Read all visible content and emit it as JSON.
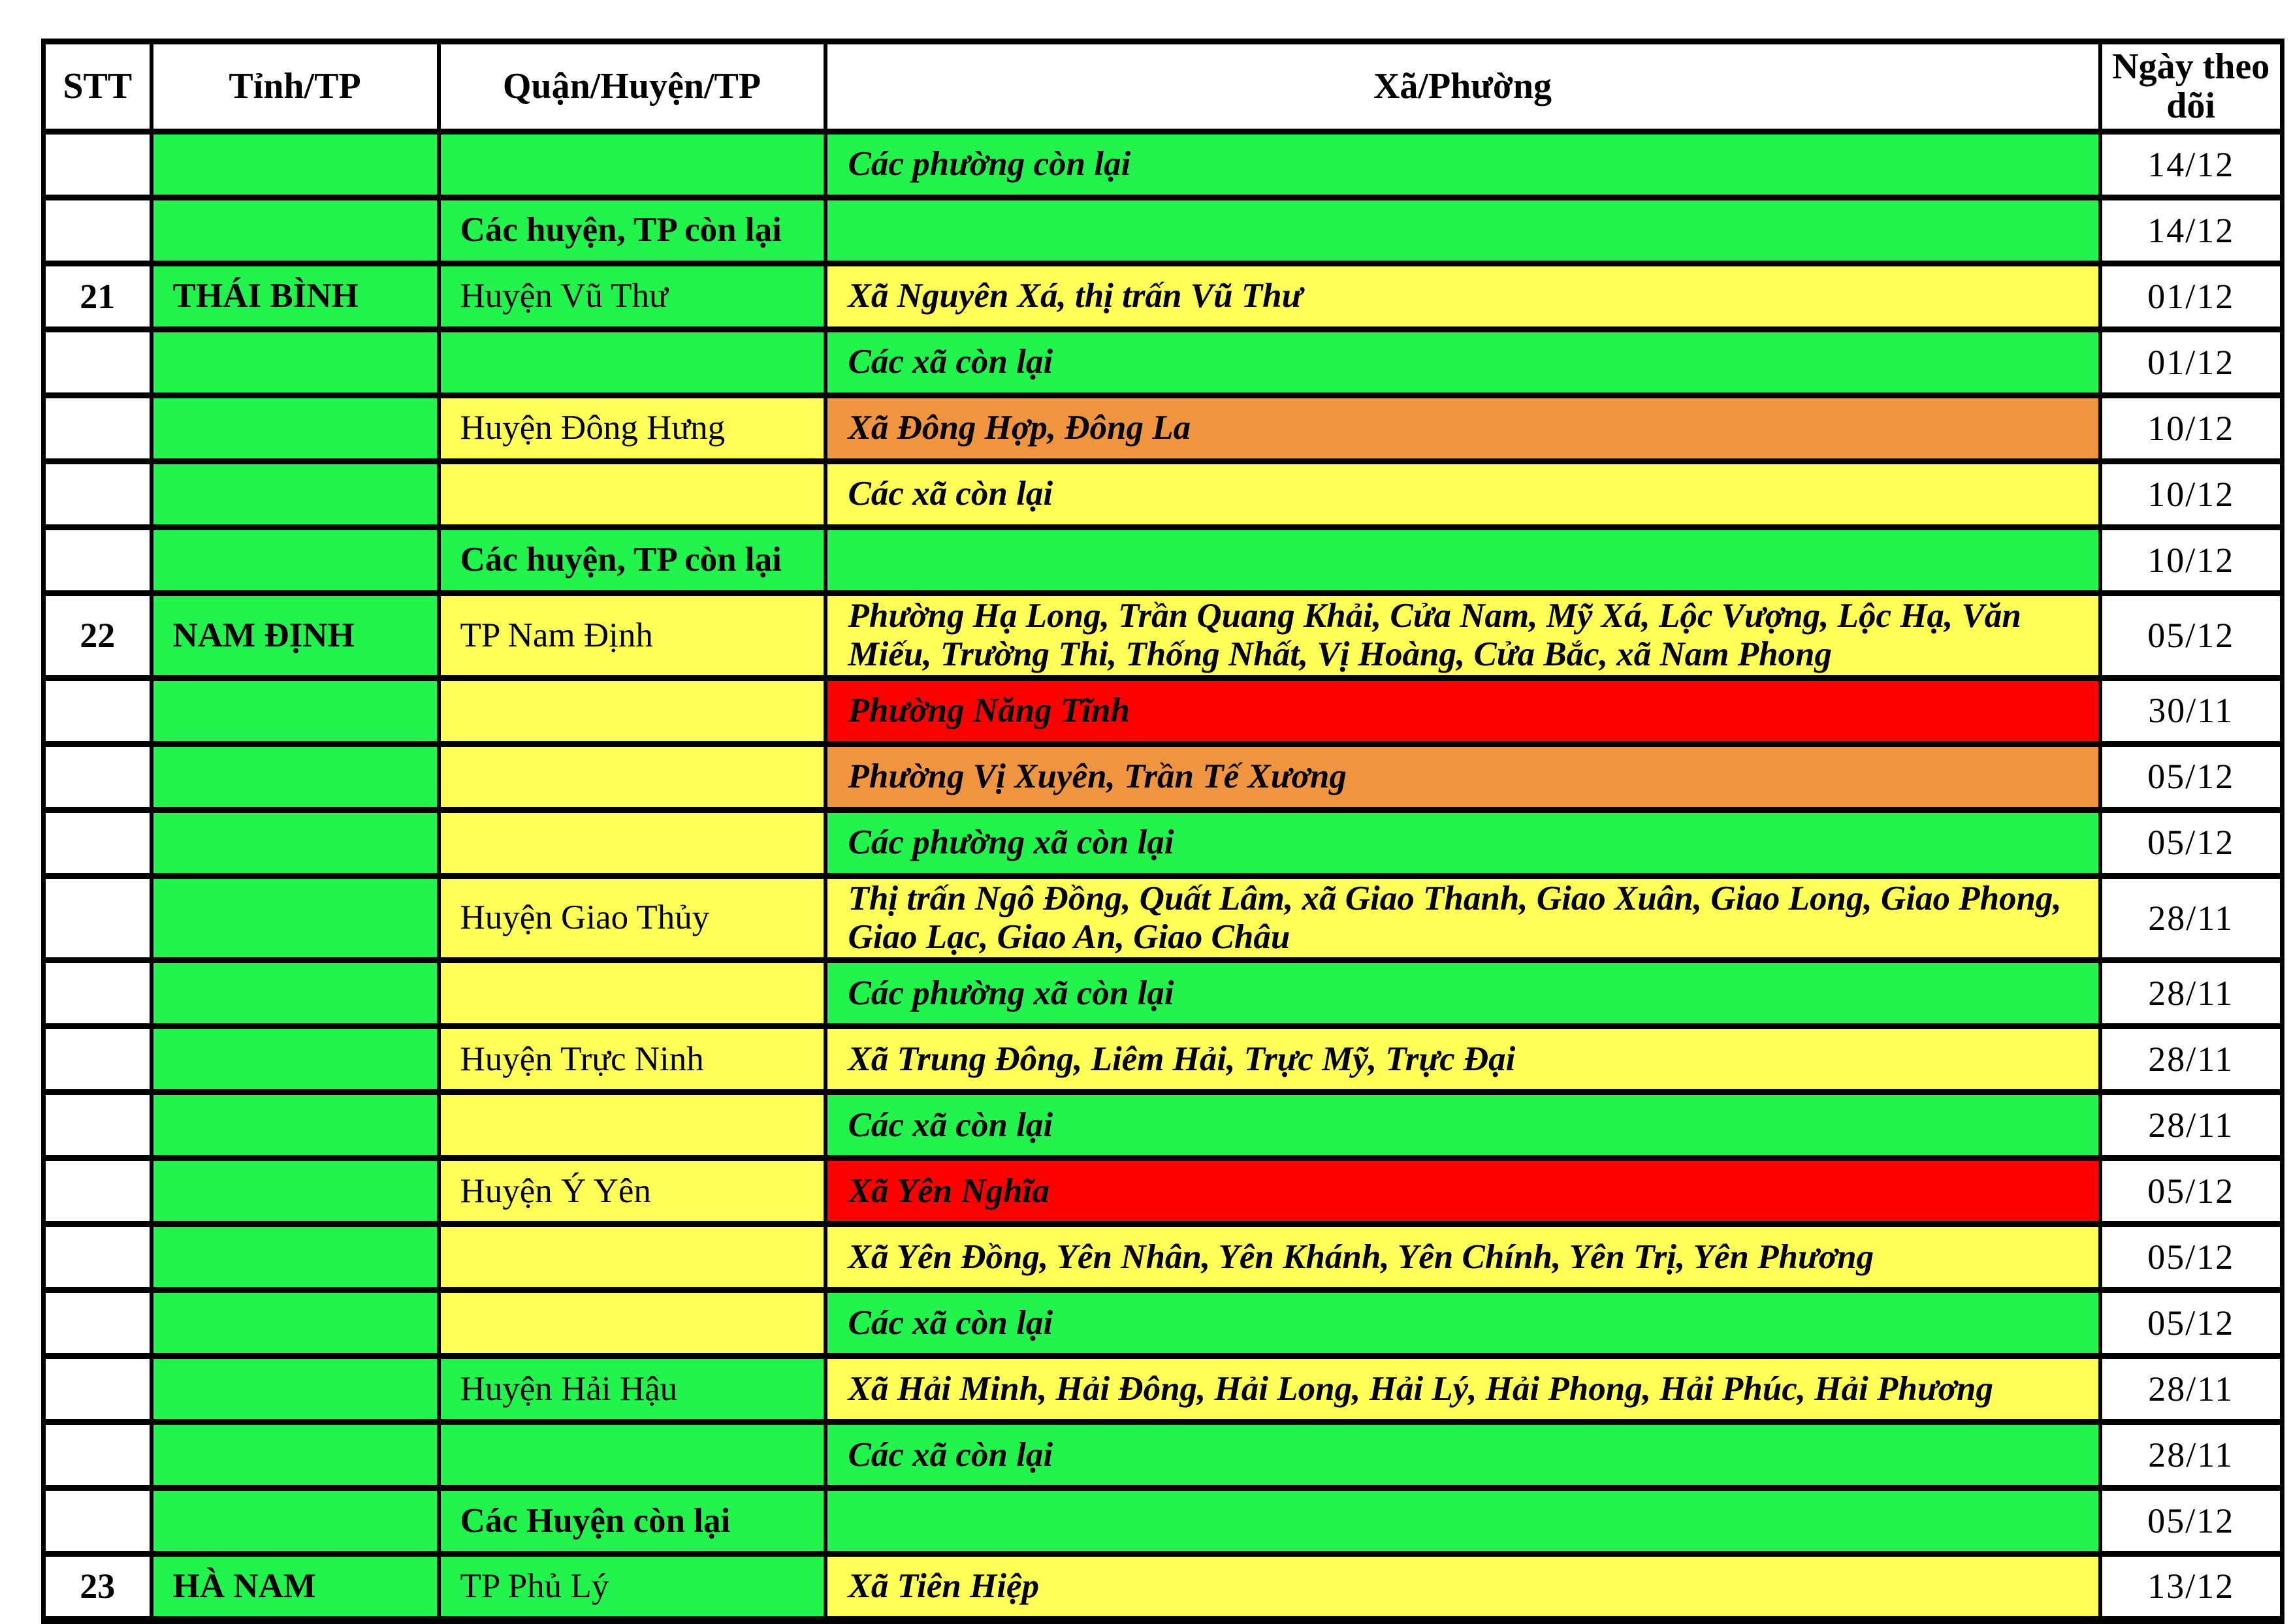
{
  "table": {
    "headers": [
      "STT",
      "Tỉnh/TP",
      "Quận/Huyện/TP",
      "Xã/Phường",
      "Ngày theo dõi"
    ],
    "palette": {
      "green": "#22F34D",
      "yellow": "#FFFF57",
      "orange": "#F0953F",
      "red": "#FC0000",
      "white": "#FFFFFF"
    },
    "rows": [
      {
        "stt": "",
        "tinh": "",
        "tinh_bg": "green",
        "quan": "",
        "quan_bg": "green",
        "quan_bold": false,
        "xa": "Các phường còn lại",
        "xa_bg": "green",
        "date": "14/12",
        "tall": false
      },
      {
        "stt": "",
        "tinh": "",
        "tinh_bg": "green",
        "quan": "Các huyện, TP còn lại",
        "quan_bg": "green",
        "quan_bold": true,
        "xa": "",
        "xa_bg": "green",
        "date": "14/12",
        "tall": false
      },
      {
        "stt": "21",
        "tinh": "THÁI BÌNH",
        "tinh_bg": "green",
        "quan": "Huyện Vũ Thư",
        "quan_bg": "green",
        "quan_bold": false,
        "xa": "Xã Nguyên Xá, thị trấn Vũ Thư",
        "xa_bg": "yellow",
        "date": "01/12",
        "tall": false
      },
      {
        "stt": "",
        "tinh": "",
        "tinh_bg": "green",
        "quan": "",
        "quan_bg": "green",
        "quan_bold": false,
        "xa": "Các xã còn lại",
        "xa_bg": "green",
        "date": "01/12",
        "tall": false
      },
      {
        "stt": "",
        "tinh": "",
        "tinh_bg": "green",
        "quan": "Huyện Đông Hưng",
        "quan_bg": "yellow",
        "quan_bold": false,
        "xa": "Xã Đông Hợp, Đông La",
        "xa_bg": "orange",
        "date": "10/12",
        "tall": false
      },
      {
        "stt": "",
        "tinh": "",
        "tinh_bg": "green",
        "quan": "",
        "quan_bg": "yellow",
        "quan_bold": false,
        "xa": "Các xã còn lại",
        "xa_bg": "yellow",
        "date": "10/12",
        "tall": false
      },
      {
        "stt": "",
        "tinh": "",
        "tinh_bg": "green",
        "quan": "Các huyện, TP còn lại",
        "quan_bg": "green",
        "quan_bold": true,
        "xa": "",
        "xa_bg": "green",
        "date": "10/12",
        "tall": false
      },
      {
        "stt": "22",
        "tinh": "NAM ĐỊNH",
        "tinh_bg": "green",
        "quan": "TP Nam Định",
        "quan_bg": "yellow",
        "quan_bold": false,
        "xa": "Phường Hạ Long, Trần Quang Khải, Cửa Nam, Mỹ Xá, Lộc Vượng, Lộc Hạ, Văn Miếu, Trường Thi, Thống Nhất, Vị Hoàng, Cửa Bắc, xã Nam Phong",
        "xa_bg": "yellow",
        "date": "05/12",
        "tall": true
      },
      {
        "stt": "",
        "tinh": "",
        "tinh_bg": "green",
        "quan": "",
        "quan_bg": "yellow",
        "quan_bold": false,
        "xa": "Phường Năng Tĩnh",
        "xa_bg": "red",
        "date": "30/11",
        "tall": false
      },
      {
        "stt": "",
        "tinh": "",
        "tinh_bg": "green",
        "quan": "",
        "quan_bg": "yellow",
        "quan_bold": false,
        "xa": "Phường Vị Xuyên, Trần Tế Xương",
        "xa_bg": "orange",
        "date": "05/12",
        "tall": false
      },
      {
        "stt": "",
        "tinh": "",
        "tinh_bg": "green",
        "quan": "",
        "quan_bg": "yellow",
        "quan_bold": false,
        "xa": "Các phường xã còn lại",
        "xa_bg": "green",
        "date": "05/12",
        "tall": false
      },
      {
        "stt": "",
        "tinh": "",
        "tinh_bg": "green",
        "quan": "Huyện Giao Thủy",
        "quan_bg": "yellow",
        "quan_bold": false,
        "xa": "Thị trấn Ngô Đồng, Quất Lâm, xã Giao Thanh, Giao Xuân, Giao Long, Giao Phong, Giao Lạc, Giao An, Giao Châu",
        "xa_bg": "yellow",
        "date": "28/11",
        "tall": true
      },
      {
        "stt": "",
        "tinh": "",
        "tinh_bg": "green",
        "quan": "",
        "quan_bg": "yellow",
        "quan_bold": false,
        "xa": "Các phường xã còn lại",
        "xa_bg": "green",
        "date": "28/11",
        "tall": false
      },
      {
        "stt": "",
        "tinh": "",
        "tinh_bg": "green",
        "quan": "Huyện Trực Ninh",
        "quan_bg": "yellow",
        "quan_bold": false,
        "xa": "Xã Trung Đông, Liêm Hải, Trực Mỹ, Trực Đại",
        "xa_bg": "yellow",
        "date": "28/11",
        "tall": false
      },
      {
        "stt": "",
        "tinh": "",
        "tinh_bg": "green",
        "quan": "",
        "quan_bg": "yellow",
        "quan_bold": false,
        "xa": "Các xã còn lại",
        "xa_bg": "green",
        "date": "28/11",
        "tall": false
      },
      {
        "stt": "",
        "tinh": "",
        "tinh_bg": "green",
        "quan": "Huyện Ý Yên",
        "quan_bg": "yellow",
        "quan_bold": false,
        "xa": "Xã Yên Nghĩa",
        "xa_bg": "red",
        "date": "05/12",
        "tall": false
      },
      {
        "stt": "",
        "tinh": "",
        "tinh_bg": "green",
        "quan": "",
        "quan_bg": "yellow",
        "quan_bold": false,
        "xa": "Xã Yên Đồng, Yên Nhân, Yên Khánh, Yên Chính, Yên Trị, Yên Phương",
        "xa_bg": "yellow",
        "date": "05/12",
        "tall": false
      },
      {
        "stt": "",
        "tinh": "",
        "tinh_bg": "green",
        "quan": "",
        "quan_bg": "yellow",
        "quan_bold": false,
        "xa": "Các xã còn lại",
        "xa_bg": "green",
        "date": "05/12",
        "tall": false
      },
      {
        "stt": "",
        "tinh": "",
        "tinh_bg": "green",
        "quan": "Huyện Hải Hậu",
        "quan_bg": "green",
        "quan_bold": false,
        "xa": "Xã Hải Minh, Hải Đông, Hải Long, Hải Lý, Hải Phong, Hải Phúc, Hải Phương",
        "xa_bg": "yellow",
        "date": "28/11",
        "tall": false
      },
      {
        "stt": "",
        "tinh": "",
        "tinh_bg": "green",
        "quan": "",
        "quan_bg": "green",
        "quan_bold": false,
        "xa": "Các xã còn lại",
        "xa_bg": "green",
        "date": "28/11",
        "tall": false
      },
      {
        "stt": "",
        "tinh": "",
        "tinh_bg": "green",
        "quan": "Các Huyện còn lại",
        "quan_bg": "green",
        "quan_bold": true,
        "xa": "",
        "xa_bg": "green",
        "date": "05/12",
        "tall": false
      },
      {
        "stt": "23",
        "tinh": "HÀ NAM",
        "tinh_bg": "green",
        "quan": "TP Phủ Lý",
        "quan_bg": "green",
        "quan_bold": false,
        "xa": "Xã Tiên Hiệp",
        "xa_bg": "yellow",
        "date": "13/12",
        "tall": false
      }
    ]
  }
}
